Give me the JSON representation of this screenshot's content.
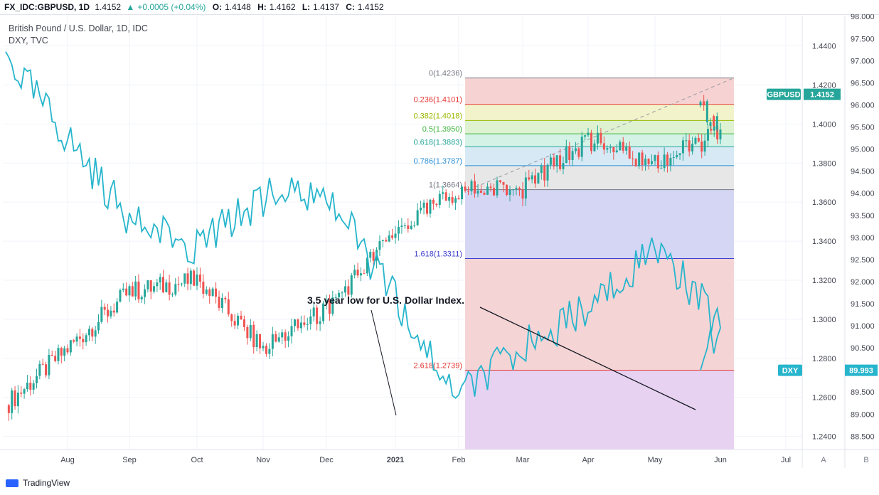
{
  "header": {
    "symbol": "FX_IDC:GBPUSD, 1D",
    "last": "1.4152",
    "change": "+0.0005 (+0.04%)",
    "o_label": "O:",
    "o_value": "1.4148",
    "h_label": "H:",
    "h_value": "1.4162",
    "l_label": "L:",
    "l_value": "1.4137",
    "c_label": "C:",
    "c_value": "1.4152"
  },
  "legend": {
    "series1": "British Pound / U.S. Dollar, 1D, IDC",
    "series2": "DXY, TVC"
  },
  "footer": {
    "brand": "TradingView"
  },
  "colors": {
    "up": "#26a69a",
    "down": "#ef5350",
    "dxy": "#26b5cc",
    "grid": "#f0f3fa",
    "axis_text": "#434651"
  },
  "chart_data": {
    "type": "line",
    "title": "British Pound / U.S. Dollar, 1D, IDC",
    "x_ticks": [
      "Aug",
      "Sep",
      "Oct",
      "Nov",
      "Dec",
      "2021",
      "Feb",
      "Mar",
      "Apr",
      "May",
      "Jun",
      "Jul"
    ],
    "y_left_ticks": [
      "1.4400",
      "1.4200",
      "1.4000",
      "1.3800",
      "1.3600",
      "1.3400",
      "1.3200",
      "1.3000",
      "1.2800",
      "1.2600",
      "1.2400"
    ],
    "y_left_range": [
      1.2333,
      1.4555
    ],
    "y_right_ticks": [
      "98.000",
      "97.500",
      "97.000",
      "96.500",
      "96.000",
      "95.500",
      "95.000",
      "94.500",
      "94.000",
      "93.500",
      "93.000",
      "92.500",
      "92.000",
      "91.500",
      "91.000",
      "90.500",
      "90.000",
      "89.500",
      "89.000",
      "88.500"
    ],
    "y_right_range": [
      88.2,
      98.02
    ],
    "gbpusd_close_by_month": [
      {
        "x": "Jul",
        "y": 1.256
      },
      {
        "x": "Aug",
        "y": 1.314
      },
      {
        "x": "Sep",
        "y": 1.32
      },
      {
        "x": "Oct",
        "y": 1.285
      },
      {
        "x": "Nov",
        "y": 1.305
      },
      {
        "x": "Dec",
        "y": 1.345
      },
      {
        "x": "2021",
        "y": 1.366
      },
      {
        "x": "Feb",
        "y": 1.367
      },
      {
        "x": "Mar",
        "y": 1.392
      },
      {
        "x": "Apr",
        "y": 1.379
      },
      {
        "x": "May",
        "y": 1.396
      },
      {
        "x": "current",
        "y": 1.4152
      }
    ],
    "dxy_by_month": [
      {
        "x": "Jul",
        "y": 97.1
      },
      {
        "x": "Aug",
        "y": 93.4
      },
      {
        "x": "Sep",
        "y": 92.8
      },
      {
        "x": "Oct",
        "y": 93.9
      },
      {
        "x": "Nov",
        "y": 94.0
      },
      {
        "x": "Dec",
        "y": 91.6
      },
      {
        "x": "2021",
        "y": 89.4
      },
      {
        "x": "Feb",
        "y": 90.5
      },
      {
        "x": "Mar",
        "y": 91.4
      },
      {
        "x": "Apr",
        "y": 92.8
      },
      {
        "x": "May",
        "y": 91.0
      },
      {
        "x": "current",
        "y": 89.993
      }
    ],
    "fib_levels": [
      {
        "ratio": "0",
        "label": "0(1.4236)",
        "value": 1.4236,
        "color": "#787b86",
        "fill": "#f6d1d0"
      },
      {
        "ratio": "0.236",
        "label": "0.236(1.4101)",
        "value": 1.4101,
        "color": "#e53935",
        "fill": "#f1f2c8"
      },
      {
        "ratio": "0.382",
        "label": "0.382(1.4018)",
        "value": 1.4018,
        "color": "#9cb800",
        "fill": "#dcf1cf"
      },
      {
        "ratio": "0.5",
        "label": "0.5(1.3950)",
        "value": 1.395,
        "color": "#3db63b",
        "fill": "#d2f1e5"
      },
      {
        "ratio": "0.618",
        "label": "0.618(1.3883)",
        "value": 1.3883,
        "color": "#26a69a",
        "fill": "#d4e8f4"
      },
      {
        "ratio": "0.786",
        "label": "0.786(1.3787)",
        "value": 1.3787,
        "color": "#2a8fd8",
        "fill": "#e6e6e6"
      },
      {
        "ratio": "1",
        "label": "1(1.3664)",
        "value": 1.3664,
        "color": "#787b86",
        "fill": "#d3d4f3"
      },
      {
        "ratio": "1.618",
        "label": "1.618(1.3311)",
        "value": 1.3311,
        "color": "#3f3fd0",
        "fill": "#f4d2d3"
      },
      {
        "ratio": "2.618",
        "label": "2.618(1.2739)",
        "value": 1.2739,
        "color": "#e53935",
        "fill": "#e8d2f1"
      }
    ],
    "annotation": "3.5 year low for U.S. Dollar Index.",
    "last_labels": {
      "gbpusd_name": "GBPUSD",
      "gbpusd_value": "1.4152",
      "dxy_name": "DXY",
      "dxy_value": "89.993"
    },
    "scale_buttons": {
      "left": "A",
      "right": "B"
    }
  }
}
